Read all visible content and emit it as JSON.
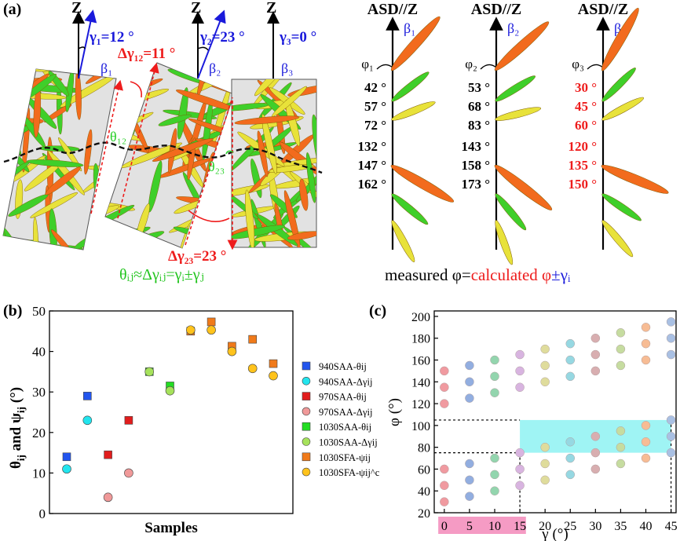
{
  "panel_a": {
    "label": "(a)",
    "z_label": "Z",
    "gamma_labels": [
      "γ₁=12 °",
      "γ₂=23 °",
      "γ₃=0 °"
    ],
    "beta_labels": [
      "β₁",
      "β₂",
      "β₃"
    ],
    "delta_gamma_12": "Δγ₁₂=11 °",
    "delta_gamma_23": "Δγ₂₃=23 °",
    "theta_labels": [
      "θ₁₂",
      "θ₂₃"
    ],
    "relation": "θᵢⱼ≈Δγᵢⱼ=γᵢ±γⱼ",
    "asd_title": "ASD//Z",
    "phi_labels": [
      "φ₁",
      "φ₂",
      "φ₃"
    ],
    "angles_col1": [
      "42 °",
      "57 °",
      "72 °",
      "132 °",
      "147 °",
      "162 °"
    ],
    "angles_col2": [
      "53 °",
      "68 °",
      "83 °",
      "143 °",
      "158 °",
      "173 °"
    ],
    "angles_col3": [
      "30 °",
      "45 °",
      "60 °",
      "120 °",
      "135 °",
      "150 °"
    ],
    "caption_measured": "measured φ=",
    "caption_calculated": "calculated φ",
    "caption_pm": "±γᵢ",
    "colors": {
      "orange": "#f26b1d",
      "green": "#3fcf2a",
      "yellow": "#e8e23a",
      "red": "#ee1c1c",
      "blue": "#1a1adb"
    }
  },
  "panel_b": {
    "label": "(b)",
    "chart_data": {
      "type": "scatter",
      "xlabel": "Samples",
      "ylabel": "θij and ψij (°)",
      "ylim": [
        0,
        50
      ],
      "yticks": [
        0,
        10,
        20,
        30,
        40,
        50
      ],
      "series": [
        {
          "name": "940SAA-θij",
          "marker": "square",
          "color": "#2255ee",
          "x": [
            1,
            2
          ],
          "y": [
            14,
            29
          ]
        },
        {
          "name": "940SAA-Δγij",
          "marker": "circle",
          "color": "#22e5ee",
          "x": [
            1,
            2
          ],
          "y": [
            11,
            23
          ]
        },
        {
          "name": "970SAA-θij",
          "marker": "square",
          "color": "#e11d1d",
          "x": [
            3,
            4
          ],
          "y": [
            14.5,
            23
          ]
        },
        {
          "name": "970SAA-Δγij",
          "marker": "circle",
          "color": "#f09999",
          "x": [
            3,
            4
          ],
          "y": [
            4,
            10
          ]
        },
        {
          "name": "1030SAA-θij",
          "marker": "square",
          "color": "#22dd22",
          "x": [
            5,
            6
          ],
          "y": [
            35,
            31.5
          ]
        },
        {
          "name": "1030SAA-Δγij",
          "marker": "circle",
          "color": "#a6e25b",
          "x": [
            5,
            6
          ],
          "y": [
            35,
            30.3
          ]
        },
        {
          "name": "1030SFA-ψij",
          "marker": "square",
          "color": "#f07a1a",
          "x": [
            7,
            8,
            9,
            10,
            11
          ],
          "y": [
            45,
            47.3,
            41.3,
            43,
            37
          ]
        },
        {
          "name": "1030SFA-ψij^c",
          "marker": "circle",
          "color": "#ffc31c",
          "x": [
            7,
            8,
            9,
            10,
            11
          ],
          "y": [
            45.3,
            45.3,
            40,
            35.8,
            34
          ]
        }
      ]
    }
  },
  "panel_c": {
    "label": "(c)",
    "chart_data": {
      "type": "scatter",
      "xlabel": "γ (°)",
      "ylabel": "φ (°)",
      "xlim": [
        -2,
        46
      ],
      "ylim": [
        20,
        205
      ],
      "xticks": [
        0,
        5,
        10,
        15,
        20,
        25,
        30,
        35,
        40,
        45
      ],
      "yticks": [
        20,
        40,
        60,
        80,
        100,
        120,
        140,
        160,
        180,
        200
      ],
      "highlight_y": [
        75,
        105
      ],
      "highlight_x": [
        0,
        15
      ],
      "series_colors": [
        "#f09aa0",
        "#92aee0",
        "#93d5ae",
        "#d8b4e0",
        "#dfdc9c",
        "#96d8e2",
        "#d8aeb0",
        "#c6dca0",
        "#f7bc94",
        "#a9c0e3"
      ],
      "x": [
        0,
        5,
        10,
        15,
        20,
        25,
        30,
        35,
        40,
        45
      ],
      "phi_sets": [
        [
          30,
          45,
          60,
          120,
          135,
          150
        ],
        [
          35,
          50,
          65,
          125,
          140,
          155
        ],
        [
          40,
          55,
          70,
          130,
          145,
          160
        ],
        [
          45,
          60,
          75,
          135,
          150,
          165
        ],
        [
          50,
          65,
          80,
          140,
          155,
          170
        ],
        [
          55,
          70,
          85,
          145,
          160,
          175
        ],
        [
          60,
          75,
          90,
          150,
          165,
          180
        ],
        [
          65,
          80,
          95,
          155,
          170,
          185
        ],
        [
          70,
          85,
          100,
          160,
          175,
          190
        ],
        [
          75,
          90,
          105,
          165,
          180,
          195
        ]
      ]
    }
  }
}
